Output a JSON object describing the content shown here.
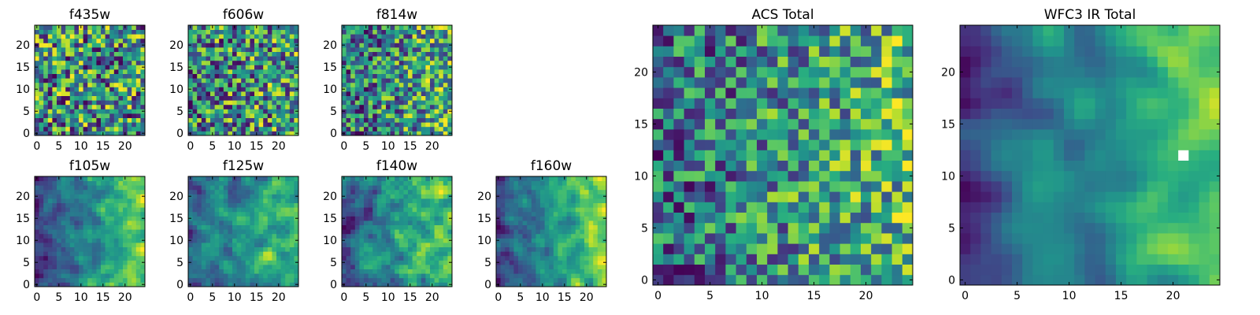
{
  "chart_data": [
    {
      "type": "heatmap",
      "title": "f435w",
      "size": 25,
      "seed": 11,
      "gradient": 0.0,
      "contrast": 1.0,
      "smooth": 0,
      "xticks": [
        0,
        5,
        10,
        15,
        20
      ],
      "yticks": [
        0,
        5,
        10,
        15,
        20
      ],
      "xtick_labels": [
        "0",
        "5",
        "10",
        "15",
        "20"
      ],
      "ytick_labels": [
        "0",
        "5",
        "10",
        "15",
        "20"
      ]
    },
    {
      "type": "heatmap",
      "title": "f606w",
      "size": 25,
      "seed": 23,
      "gradient": 0.1,
      "contrast": 1.0,
      "smooth": 0,
      "xticks": [
        0,
        5,
        10,
        15,
        20
      ],
      "yticks": [
        0,
        5,
        10,
        15,
        20
      ],
      "xtick_labels": [
        "0",
        "5",
        "10",
        "15",
        "20"
      ],
      "ytick_labels": [
        "0",
        "5",
        "10",
        "15",
        "20"
      ]
    },
    {
      "type": "heatmap",
      "title": "f814w",
      "size": 25,
      "seed": 37,
      "gradient": 0.25,
      "contrast": 1.0,
      "smooth": 0,
      "xticks": [
        0,
        5,
        10,
        15,
        20
      ],
      "yticks": [
        0,
        5,
        10,
        15,
        20
      ],
      "xtick_labels": [
        "0",
        "5",
        "10",
        "15",
        "20"
      ],
      "ytick_labels": [
        "0",
        "5",
        "10",
        "15",
        "20"
      ]
    },
    {
      "type": "heatmap",
      "title": "f105w",
      "size": 25,
      "seed": 41,
      "gradient": 0.55,
      "contrast": 0.8,
      "smooth": 1,
      "xticks": [
        0,
        5,
        10,
        15,
        20
      ],
      "yticks": [
        0,
        5,
        10,
        15,
        20
      ],
      "xtick_labels": [
        "0",
        "5",
        "10",
        "15",
        "20"
      ],
      "ytick_labels": [
        "0",
        "5",
        "10",
        "15",
        "20"
      ]
    },
    {
      "type": "heatmap",
      "title": "f125w",
      "size": 25,
      "seed": 53,
      "gradient": 0.45,
      "contrast": 0.8,
      "smooth": 1,
      "xticks": [
        0,
        5,
        10,
        15,
        20
      ],
      "yticks": [
        0,
        5,
        10,
        15,
        20
      ],
      "xtick_labels": [
        "0",
        "5",
        "10",
        "15",
        "20"
      ],
      "ytick_labels": [
        "0",
        "5",
        "10",
        "15",
        "20"
      ]
    },
    {
      "type": "heatmap",
      "title": "f140w",
      "size": 25,
      "seed": 67,
      "gradient": 0.45,
      "contrast": 0.85,
      "smooth": 1,
      "xticks": [
        0,
        5,
        10,
        15,
        20
      ],
      "yticks": [
        0,
        5,
        10,
        15,
        20
      ],
      "xtick_labels": [
        "0",
        "5",
        "10",
        "15",
        "20"
      ],
      "ytick_labels": [
        "0",
        "5",
        "10",
        "15",
        "20"
      ]
    },
    {
      "type": "heatmap",
      "title": "f160w",
      "size": 25,
      "seed": 79,
      "gradient": 0.55,
      "contrast": 0.8,
      "smooth": 1,
      "xticks": [
        0,
        5,
        10,
        15,
        20
      ],
      "yticks": [
        0,
        5,
        10,
        15,
        20
      ],
      "xtick_labels": [
        "0",
        "5",
        "10",
        "15",
        "20"
      ],
      "ytick_labels": [
        "0",
        "5",
        "10",
        "15",
        "20"
      ]
    },
    {
      "type": "heatmap",
      "title": "ACS Total",
      "size": 25,
      "seed": 97,
      "gradient": 0.3,
      "contrast": 0.9,
      "smooth": 0,
      "xticks": [
        0,
        5,
        10,
        15,
        20
      ],
      "yticks": [
        0,
        5,
        10,
        15,
        20
      ],
      "xtick_labels": [
        "0",
        "5",
        "10",
        "15",
        "20"
      ],
      "ytick_labels": [
        "0",
        "5",
        "10",
        "15",
        "20"
      ]
    },
    {
      "type": "heatmap",
      "title": "WFC3 IR Total",
      "size": 25,
      "seed": 101,
      "gradient": 0.6,
      "contrast": 0.7,
      "smooth": 2,
      "xticks": [
        0,
        5,
        10,
        15,
        20
      ],
      "yticks": [
        0,
        5,
        10,
        15,
        20
      ],
      "xtick_labels": [
        "0",
        "5",
        "10",
        "15",
        "20"
      ],
      "ytick_labels": [
        "0",
        "5",
        "10",
        "15",
        "20"
      ],
      "masked_cell": [
        21,
        12
      ]
    }
  ],
  "colormap": [
    "#440154",
    "#472d7b",
    "#3b528b",
    "#2c728e",
    "#21918c",
    "#28ae80",
    "#5ec962",
    "#addc30",
    "#fde725"
  ],
  "masked_color": "#ffffff"
}
